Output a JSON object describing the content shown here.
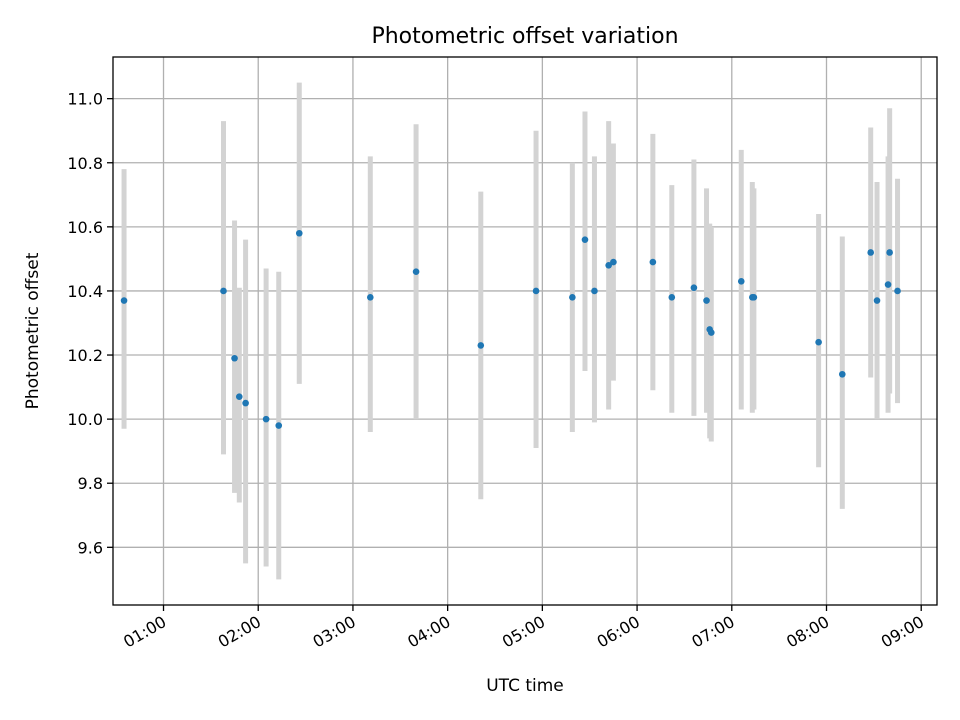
{
  "chart_data": {
    "type": "scatter",
    "title": "Photometric offset variation",
    "xlabel": "UTC time",
    "ylabel": "Photometric offset",
    "x_axis_type": "time",
    "xlim": [
      "00:28",
      "09:10"
    ],
    "ylim": [
      9.42,
      11.13
    ],
    "x_ticks": [
      "01:00",
      "02:00",
      "03:00",
      "04:00",
      "05:00",
      "06:00",
      "07:00",
      "08:00",
      "09:00"
    ],
    "y_ticks": [
      9.6,
      9.8,
      10.0,
      10.2,
      10.4,
      10.6,
      10.8,
      11.0
    ],
    "y_tick_labels": [
      "9.6",
      "9.8",
      "10.0",
      "10.2",
      "10.4",
      "10.6",
      "10.8",
      "11.0"
    ],
    "grid": true,
    "marker_color": "#1f77b4",
    "errorbar_color": "#d3d3d3",
    "points": [
      {
        "x": "00:35",
        "y": 10.37,
        "ylow": 9.97,
        "yhigh": 10.78
      },
      {
        "x": "01:38",
        "y": 10.4,
        "ylow": 9.89,
        "yhigh": 10.93
      },
      {
        "x": "01:45",
        "y": 10.19,
        "ylow": 9.77,
        "yhigh": 10.62
      },
      {
        "x": "01:48",
        "y": 10.07,
        "ylow": 9.74,
        "yhigh": 10.41
      },
      {
        "x": "01:52",
        "y": 10.05,
        "ylow": 9.55,
        "yhigh": 10.56
      },
      {
        "x": "02:05",
        "y": 10.0,
        "ylow": 9.54,
        "yhigh": 10.47
      },
      {
        "x": "02:13",
        "y": 9.98,
        "ylow": 9.5,
        "yhigh": 10.46
      },
      {
        "x": "02:26",
        "y": 10.58,
        "ylow": 10.11,
        "yhigh": 11.05
      },
      {
        "x": "03:11",
        "y": 10.38,
        "ylow": 9.96,
        "yhigh": 10.82
      },
      {
        "x": "03:40",
        "y": 10.46,
        "ylow": 10.0,
        "yhigh": 10.92
      },
      {
        "x": "04:21",
        "y": 10.23,
        "ylow": 9.75,
        "yhigh": 10.71
      },
      {
        "x": "04:56",
        "y": 10.4,
        "ylow": 9.91,
        "yhigh": 10.9
      },
      {
        "x": "05:19",
        "y": 10.38,
        "ylow": 9.96,
        "yhigh": 10.8
      },
      {
        "x": "05:27",
        "y": 10.56,
        "ylow": 10.15,
        "yhigh": 10.96
      },
      {
        "x": "05:33",
        "y": 10.4,
        "ylow": 9.99,
        "yhigh": 10.82
      },
      {
        "x": "05:42",
        "y": 10.48,
        "ylow": 10.03,
        "yhigh": 10.93
      },
      {
        "x": "05:45",
        "y": 10.49,
        "ylow": 10.12,
        "yhigh": 10.86
      },
      {
        "x": "06:10",
        "y": 10.49,
        "ylow": 10.09,
        "yhigh": 10.89
      },
      {
        "x": "06:22",
        "y": 10.38,
        "ylow": 10.02,
        "yhigh": 10.73
      },
      {
        "x": "06:36",
        "y": 10.41,
        "ylow": 10.01,
        "yhigh": 10.81
      },
      {
        "x": "06:44",
        "y": 10.37,
        "ylow": 10.02,
        "yhigh": 10.72
      },
      {
        "x": "06:46",
        "y": 10.28,
        "ylow": 9.94,
        "yhigh": 10.61
      },
      {
        "x": "06:47",
        "y": 10.27,
        "ylow": 9.93,
        "yhigh": 10.6
      },
      {
        "x": "07:06",
        "y": 10.43,
        "ylow": 10.03,
        "yhigh": 10.84
      },
      {
        "x": "07:13",
        "y": 10.38,
        "ylow": 10.02,
        "yhigh": 10.74
      },
      {
        "x": "07:14",
        "y": 10.38,
        "ylow": 10.03,
        "yhigh": 10.72
      },
      {
        "x": "07:55",
        "y": 10.24,
        "ylow": 9.85,
        "yhigh": 10.64
      },
      {
        "x": "08:10",
        "y": 10.14,
        "ylow": 9.72,
        "yhigh": 10.57
      },
      {
        "x": "08:28",
        "y": 10.52,
        "ylow": 10.13,
        "yhigh": 10.91
      },
      {
        "x": "08:32",
        "y": 10.37,
        "ylow": 10.0,
        "yhigh": 10.74
      },
      {
        "x": "08:40",
        "y": 10.52,
        "ylow": 10.08,
        "yhigh": 10.97
      },
      {
        "x": "08:39",
        "y": 10.42,
        "ylow": 10.02,
        "yhigh": 10.82
      },
      {
        "x": "08:45",
        "y": 10.4,
        "ylow": 10.05,
        "yhigh": 10.75
      }
    ]
  }
}
